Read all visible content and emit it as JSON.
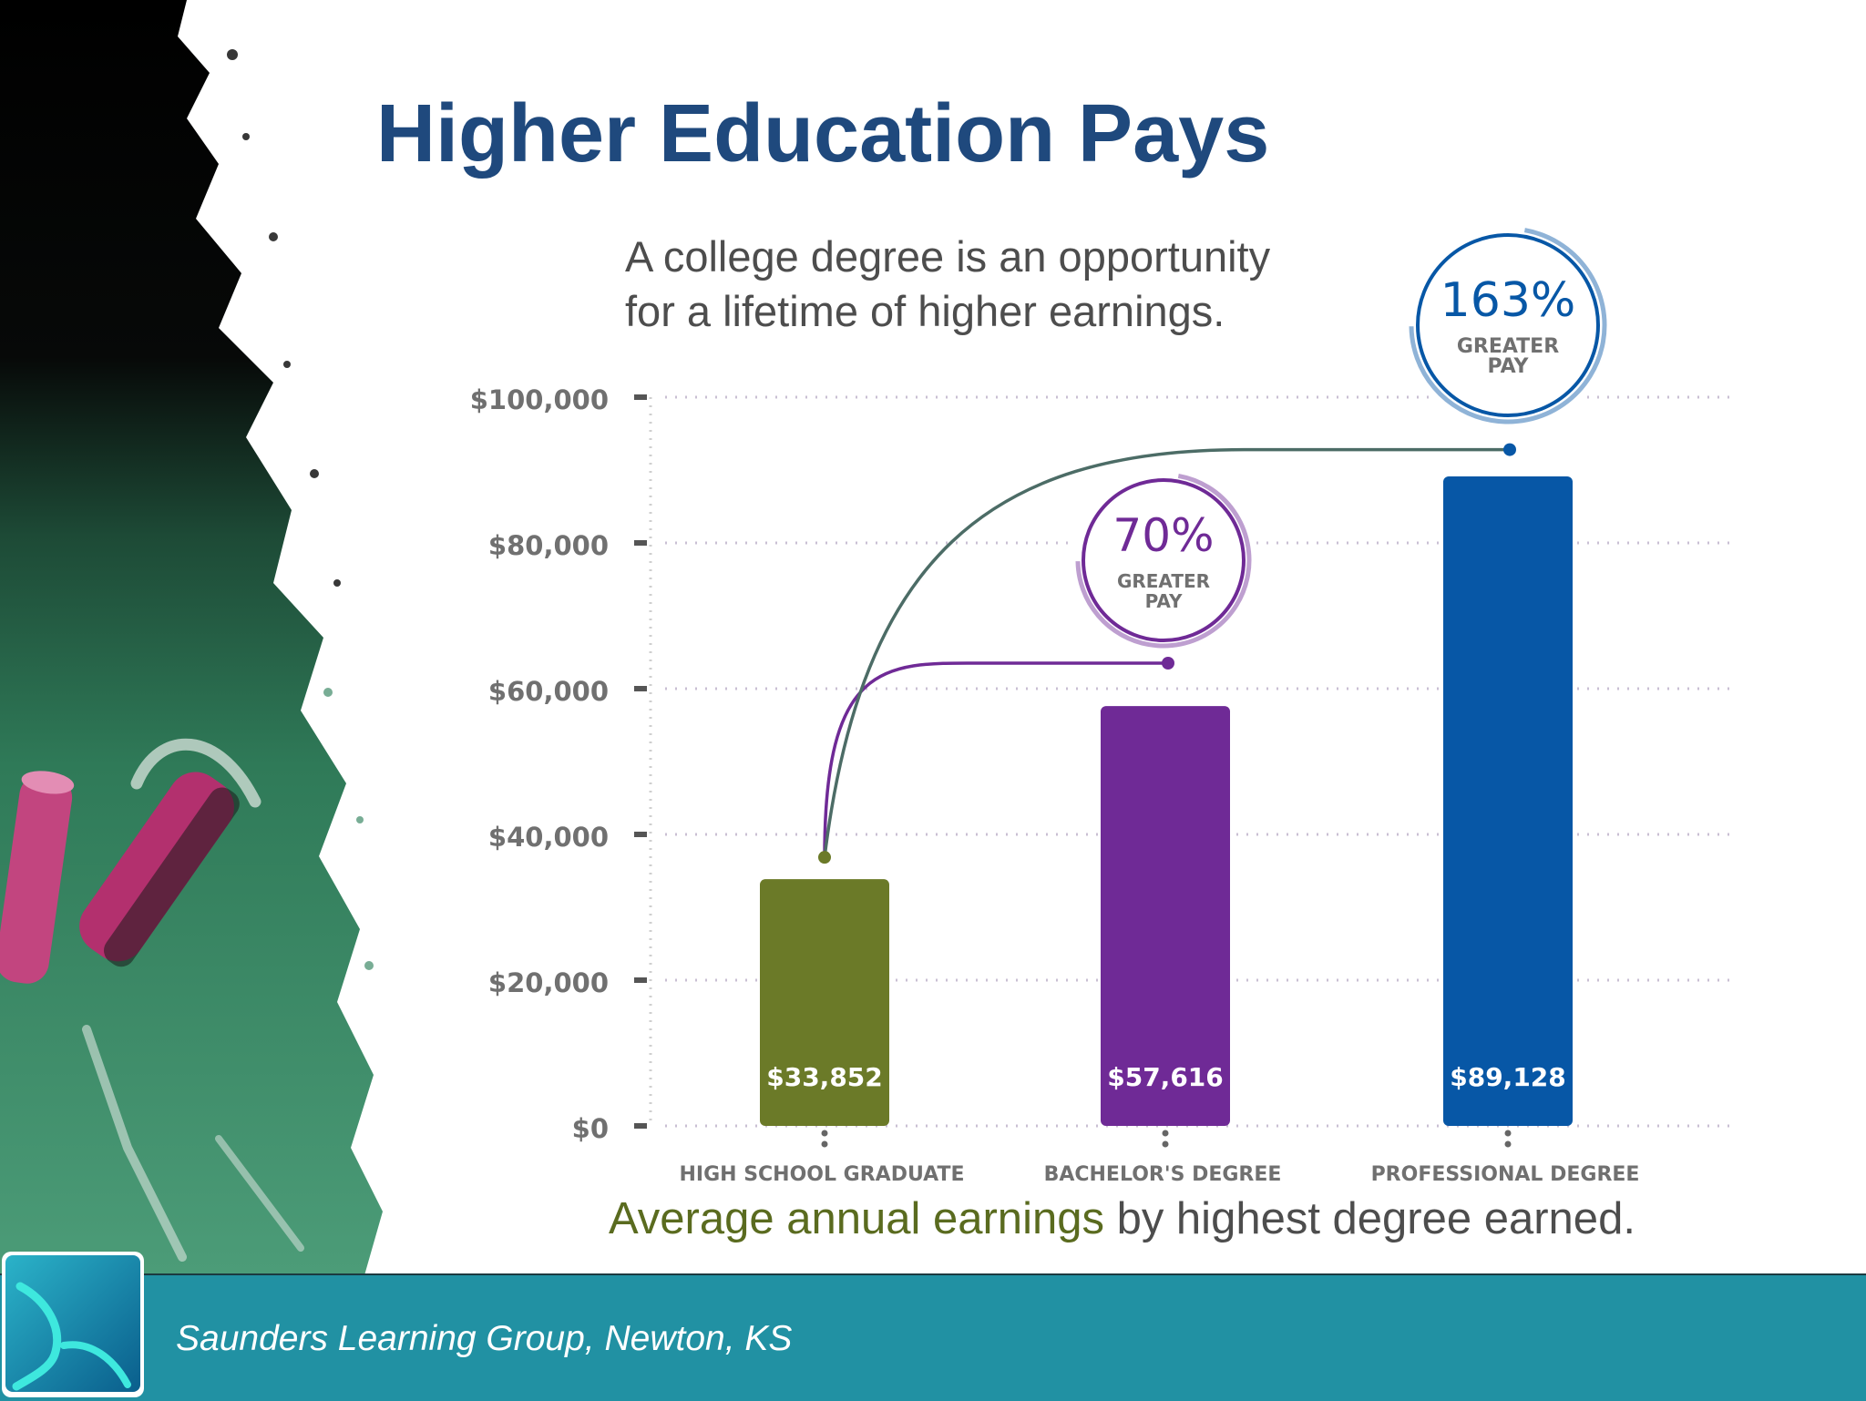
{
  "slide": {
    "title": "Higher Education Pays",
    "subtitle_lines": [
      "A college degree is an opportunity",
      "for a lifetime of higher earnings."
    ],
    "caption_highlight": "Average annual earnings",
    "caption_rest": " by highest degree earned.",
    "footer": "Saunders Learning Group, Newton, KS"
  },
  "colors": {
    "title": "#1f497d",
    "high_school": "#6b7a28",
    "bachelors": "#6f2a96",
    "professional": "#0757a6",
    "footer_bar": "#2191a3"
  },
  "chart_data": {
    "type": "bar",
    "categories": [
      "HIGH SCHOOL GRADUATE",
      "BACHELOR'S DEGREE",
      "PROFESSIONAL DEGREE"
    ],
    "values": [
      33852,
      57616,
      89128
    ],
    "value_labels": [
      "$33,852",
      "$57,616",
      "$89,128"
    ],
    "bar_colors": [
      "#6b7a28",
      "#6f2a96",
      "#0757a6"
    ],
    "ylim": [
      0,
      100000
    ],
    "yticks": [
      0,
      20000,
      40000,
      60000,
      80000,
      100000
    ],
    "ytick_labels": [
      "$0",
      "$20,000",
      "$40,000",
      "$60,000",
      "$80,000",
      "$100,000"
    ],
    "grid": true,
    "annotations": [
      {
        "target_category": "BACHELOR'S DEGREE",
        "percent": "70%",
        "line1": "GREATER",
        "line2": "PAY",
        "color": "#6f2a96"
      },
      {
        "target_category": "PROFESSIONAL DEGREE",
        "percent": "163%",
        "line1": "GREATER",
        "line2": "PAY",
        "color": "#0757a6"
      }
    ]
  }
}
